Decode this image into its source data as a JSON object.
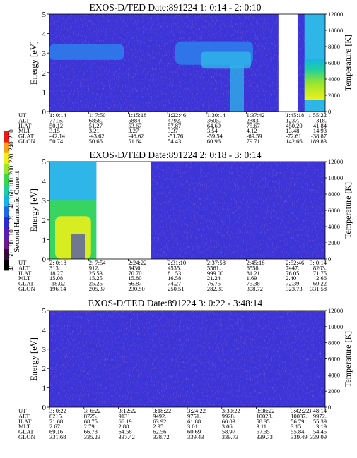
{
  "colorbar": {
    "label": "Second Harmonic Current",
    "ticks": [
      "40",
      "60",
      "80",
      "100",
      "120",
      "140",
      "160",
      "180",
      "200",
      "220",
      "240",
      "250"
    ],
    "colors": [
      "#000000",
      "#3a0a3a",
      "#6a1a8a",
      "#5a1fb4",
      "#2b2bd8",
      "#1d6ae0",
      "#16b4e6",
      "#1fcfa0",
      "#3ad94a",
      "#9be62a",
      "#f0ef1c",
      "#f7a21a",
      "#f01616"
    ]
  },
  "chart_data": [
    {
      "type": "heatmap",
      "title": "EXOS-D/TED   Date:891224   1: 0:14 - 2: 0:10",
      "ylabel": "Energy [eV]",
      "y2label": "Temperature [K]",
      "ylim": [
        0,
        5
      ],
      "y_ticks": [
        "0",
        "1",
        "2",
        "3",
        "4",
        "5"
      ],
      "y2lim": [
        0,
        12000
      ],
      "y2_ticks": [
        "0",
        "2000",
        "4000",
        "6000",
        "8000",
        "10000",
        "12000"
      ],
      "time_range_sec": [
        14,
        3610
      ],
      "data_gaps_sec": [
        [
          3000,
          3250
        ]
      ],
      "orbit_rows": [
        {
          "label": "UT",
          "values": [
            "1: 0:14",
            "1: 7:50",
            "1:15:18",
            "1:22:46",
            "1:30:14",
            "1:37:42",
            "1:45:18",
            "1:55:22"
          ]
        },
        {
          "label": "ALT",
          "values": [
            "7716.",
            "6858.",
            "5884.",
            "4792.",
            "3605.",
            "2383.",
            "1237.",
            "318."
          ]
        },
        {
          "label": "ILAT",
          "values": [
            "50.12",
            "51.27",
            "53.67",
            "57.87",
            "64.69",
            "75.67",
            "450.20",
            "41.84"
          ]
        },
        {
          "label": "MLT",
          "values": [
            "3.15",
            "3.21",
            "3.27",
            "3.37",
            "3.54",
            "4.12",
            "13.48",
            "14.93"
          ]
        },
        {
          "label": "GLAT",
          "values": [
            "-42.14",
            "-43.62",
            "-46.62",
            "-51.76",
            "-59.54",
            "-69.59",
            "-72.61",
            "-38.87"
          ]
        },
        {
          "label": "GLON",
          "values": [
            "50.74",
            "50.66",
            "51.64",
            "54.43",
            "60.96",
            "79.71",
            "142.66",
            "189.83"
          ]
        }
      ]
    },
    {
      "type": "heatmap",
      "title": "EXOS-D/TED   Date:891224   2: 0:18 - 3: 0:14",
      "ylabel": "Energy [eV]",
      "y2label": "Temperature [K]",
      "ylim": [
        0,
        5
      ],
      "y_ticks": [
        "0",
        "1",
        "2",
        "3",
        "4",
        "5"
      ],
      "y2lim": [
        0,
        12000
      ],
      "y2_ticks": [
        "0",
        "2000",
        "4000",
        "6000",
        "8000",
        "10000",
        "12000"
      ],
      "time_range_sec": [
        18,
        3614
      ],
      "data_gaps_sec": [
        [
          630,
          1340
        ]
      ],
      "orbit_rows": [
        {
          "label": "UT",
          "values": [
            "2: 0:18",
            "2: 7:54",
            "2:24:22",
            "2:31:10",
            "2:37:58",
            "2:45:18",
            "2:52:46",
            "3: 0:14"
          ]
        },
        {
          "label": "ALT",
          "values": [
            "313.",
            "912.",
            "3436.",
            "4535.",
            "5561.",
            "6558.",
            "7447.",
            "8203."
          ]
        },
        {
          "label": "ILAT",
          "values": [
            "18.27",
            "25.53",
            "70.70",
            "81.53",
            "999.00",
            "81.21",
            "76.05",
            "71.75"
          ]
        },
        {
          "label": "MLT",
          "values": [
            "15.08",
            "15.25",
            "15.80",
            "16.58",
            "21.24",
            "1.69",
            "2.40",
            "2.66"
          ]
        },
        {
          "label": "GLAT",
          "values": [
            "-18.02",
            "25.25",
            "66.87",
            "74.27",
            "76.75",
            "75.38",
            "72.39",
            "69.22"
          ]
        },
        {
          "label": "GLON",
          "values": [
            "196.14",
            "205.37",
            "230.50",
            "250.51",
            "282.39",
            "308.72",
            "323.73",
            "331.58"
          ]
        }
      ]
    },
    {
      "type": "heatmap",
      "title": "EXOS-D/TED   Date:891224   3: 0:22 - 3:48:14",
      "ylabel": "Energy [eV]",
      "y2label": "Temperature [K]",
      "ylim": [
        0,
        5
      ],
      "y_ticks": [
        "0",
        "1",
        "2",
        "3",
        "4",
        "5"
      ],
      "y2lim": [
        0,
        12000
      ],
      "y2_ticks": [
        "0",
        "2000",
        "4000",
        "6000",
        "8000",
        "10000",
        "12000"
      ],
      "time_range_sec": [
        22,
        2894
      ],
      "data_gaps_sec": [],
      "orbit_rows": [
        {
          "label": "UT",
          "values": [
            "3: 0:22",
            "3: 6:22",
            "3:12:22",
            "3:18:22",
            "3:24:22",
            "3:30:22",
            "3:36:22",
            "3:42:22",
            "3:48:14"
          ]
        },
        {
          "label": "ALT",
          "values": [
            "8215.",
            "8725.",
            "9131.",
            "9492.",
            "9751.",
            "9928.",
            "10023.",
            "10037.",
            "9972."
          ]
        },
        {
          "label": "ILAT",
          "values": [
            "71.68",
            "68.75",
            "66.19",
            "63.92",
            "61.88",
            "60.03",
            "58.35",
            "56.79",
            "55.39"
          ]
        },
        {
          "label": "MLT",
          "values": [
            "2.67",
            "2.79",
            "2.88",
            "2.95",
            "3.01",
            "3.06",
            "3.11",
            "3.15",
            "3.19"
          ]
        },
        {
          "label": "GLAT",
          "values": [
            "69.16",
            "66.78",
            "64.58",
            "62.56",
            "60.69",
            "58.97",
            "57.35",
            "55.84",
            "54.45"
          ]
        },
        {
          "label": "GLON",
          "values": [
            "331.68",
            "335.23",
            "337.42",
            "338.72",
            "339.43",
            "339.73",
            "339.73",
            "339.49",
            "339.09"
          ]
        }
      ]
    }
  ]
}
